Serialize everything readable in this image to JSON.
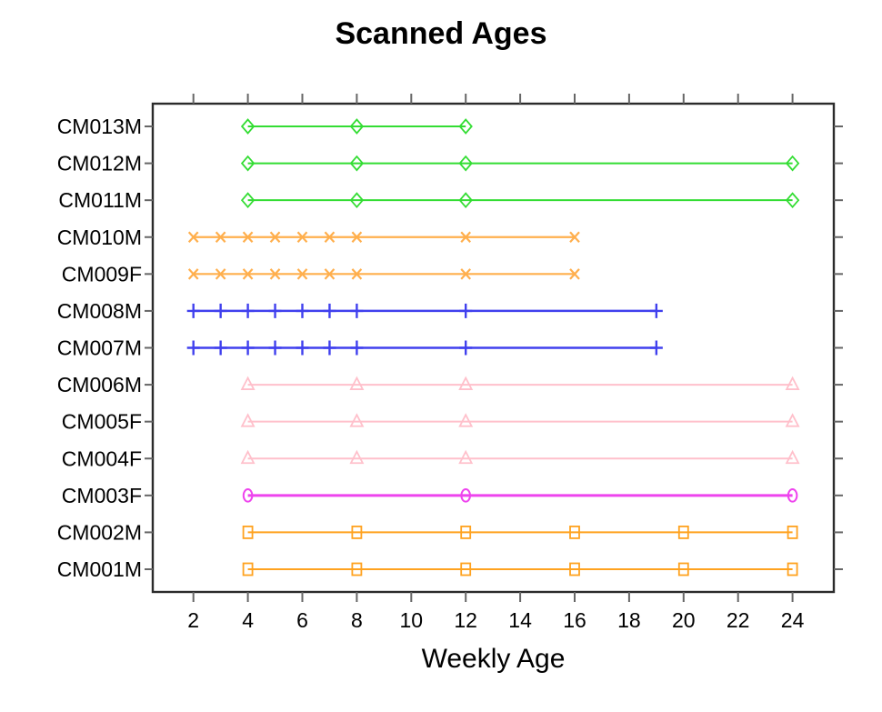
{
  "chart_data": {
    "type": "line",
    "title": "Scanned Ages",
    "xlabel": "Weekly Age",
    "ylabel": "",
    "x_ticks": [
      2,
      4,
      6,
      8,
      10,
      12,
      14,
      16,
      18,
      20,
      22,
      24
    ],
    "xlim": [
      0.5,
      25.5
    ],
    "grid": false,
    "legend": "none",
    "axis_color": "#666666",
    "box_color": "#2b2b2b",
    "series": [
      {
        "name": "CM013M",
        "color": "#33dd33",
        "marker": "diamond",
        "line_width": 2.0,
        "x": [
          4,
          8,
          12
        ]
      },
      {
        "name": "CM012M",
        "color": "#33dd33",
        "marker": "diamond",
        "line_width": 2.0,
        "x": [
          4,
          8,
          12,
          24
        ]
      },
      {
        "name": "CM011M",
        "color": "#33dd33",
        "marker": "diamond",
        "line_width": 2.0,
        "x": [
          4,
          8,
          12,
          24
        ]
      },
      {
        "name": "CM010M",
        "color": "#ffaf4d",
        "marker": "x",
        "line_width": 2.2,
        "x": [
          2,
          3,
          4,
          5,
          6,
          7,
          8,
          12,
          16
        ]
      },
      {
        "name": "CM009F",
        "color": "#ffaf4d",
        "marker": "x",
        "line_width": 2.2,
        "x": [
          2,
          3,
          4,
          5,
          6,
          7,
          8,
          12,
          16
        ]
      },
      {
        "name": "CM008M",
        "color": "#4040ee",
        "marker": "plus",
        "line_width": 2.5,
        "x": [
          2,
          3,
          4,
          5,
          6,
          7,
          8,
          12,
          19
        ]
      },
      {
        "name": "CM007M",
        "color": "#4040ee",
        "marker": "plus",
        "line_width": 2.5,
        "x": [
          2,
          3,
          4,
          5,
          6,
          7,
          8,
          12,
          19
        ]
      },
      {
        "name": "CM006M",
        "color": "#ffc0cb",
        "marker": "triangle",
        "line_width": 2.0,
        "x": [
          4,
          8,
          12,
          24
        ]
      },
      {
        "name": "CM005F",
        "color": "#ffc0cb",
        "marker": "triangle",
        "line_width": 2.0,
        "x": [
          4,
          8,
          12,
          24
        ]
      },
      {
        "name": "CM004F",
        "color": "#ffc0cb",
        "marker": "triangle",
        "line_width": 2.0,
        "x": [
          4,
          8,
          12,
          24
        ]
      },
      {
        "name": "CM003F",
        "color": "#ee44ee",
        "marker": "circle",
        "line_width": 3.0,
        "x": [
          4,
          12,
          24
        ]
      },
      {
        "name": "CM002M",
        "color": "#ffa21f",
        "marker": "square",
        "line_width": 2.0,
        "x": [
          4,
          8,
          12,
          16,
          20,
          24
        ]
      },
      {
        "name": "CM001M",
        "color": "#ffa21f",
        "marker": "square",
        "line_width": 2.0,
        "x": [
          4,
          8,
          12,
          16,
          20,
          24
        ]
      }
    ]
  }
}
